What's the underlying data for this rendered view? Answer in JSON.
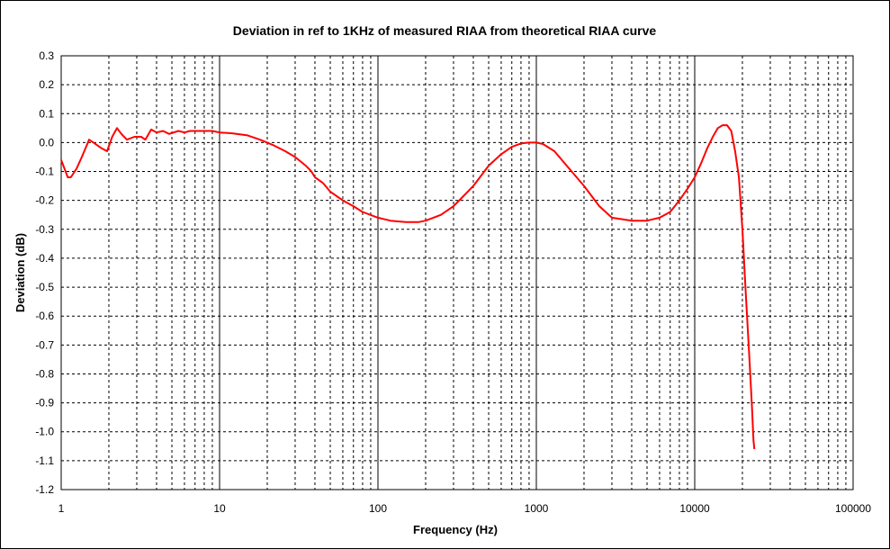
{
  "chart_data": {
    "type": "line",
    "title": "Deviation in ref to 1KHz of measured RIAA from theoretical RIAA curve",
    "xlabel": "Frequency (Hz)",
    "ylabel": "Deviation (dB)",
    "x_scale": "log",
    "xlim": [
      1,
      100000
    ],
    "ylim": [
      -1.2,
      0.3
    ],
    "x_ticks": [
      1,
      10,
      100,
      1000,
      10000,
      100000
    ],
    "x_tick_labels": [
      "1",
      "10",
      "100",
      "1000",
      "10000",
      "100000"
    ],
    "y_ticks": [
      0.3,
      0.2,
      0.1,
      0.0,
      -0.1,
      -0.2,
      -0.3,
      -0.4,
      -0.5,
      -0.6,
      -0.7,
      -0.8,
      -0.9,
      -1.0,
      -1.1,
      -1.2
    ],
    "y_tick_labels": [
      "0.3",
      "0.2",
      "0.1",
      "0.0",
      "-0.1",
      "-0.2",
      "-0.3",
      "-0.4",
      "-0.5",
      "-0.6",
      "-0.7",
      "-0.8",
      "-0.9",
      "-1.0",
      "-1.1",
      "-1.2"
    ],
    "grid": true,
    "colors": {
      "line": "#ff0000",
      "major_grid": "#000000",
      "minor_grid": "#000000",
      "axis": "#000000"
    },
    "series": [
      {
        "x": [
          1,
          1.1,
          1.15,
          1.25,
          1.35,
          1.5,
          1.6,
          1.8,
          1.95,
          2.1,
          2.25,
          2.4,
          2.6,
          2.9,
          3.2,
          3.4,
          3.7,
          4.0,
          4.4,
          4.8,
          5.5,
          6.0,
          6.5,
          7.0,
          8.0,
          9.0,
          10,
          12,
          15,
          18,
          22,
          26,
          30,
          35,
          38,
          40,
          45,
          50,
          60,
          70,
          80,
          100,
          120,
          150,
          180,
          200,
          250,
          300,
          400,
          500,
          600,
          700,
          800,
          900,
          1000,
          1100,
          1300,
          1500,
          2000,
          2500,
          3000,
          4000,
          5000,
          6000,
          7000,
          8000,
          9000,
          10000,
          11000,
          12000,
          13000,
          14000,
          15000,
          16000,
          17000,
          18000,
          19000,
          20000,
          21000,
          22000,
          23000,
          23500,
          23800
        ],
        "y": [
          -0.06,
          -0.12,
          -0.12,
          -0.09,
          -0.05,
          0.01,
          0.0,
          -0.02,
          -0.03,
          0.02,
          0.05,
          0.03,
          0.01,
          0.02,
          0.02,
          0.01,
          0.045,
          0.035,
          0.04,
          0.03,
          0.04,
          0.035,
          0.04,
          0.04,
          0.04,
          0.04,
          0.035,
          0.032,
          0.025,
          0.01,
          -0.01,
          -0.03,
          -0.05,
          -0.08,
          -0.1,
          -0.12,
          -0.14,
          -0.17,
          -0.2,
          -0.22,
          -0.24,
          -0.26,
          -0.27,
          -0.275,
          -0.275,
          -0.27,
          -0.25,
          -0.22,
          -0.15,
          -0.08,
          -0.04,
          -0.015,
          -0.003,
          0.0,
          0.0,
          -0.005,
          -0.03,
          -0.07,
          -0.15,
          -0.22,
          -0.26,
          -0.27,
          -0.27,
          -0.26,
          -0.24,
          -0.2,
          -0.16,
          -0.12,
          -0.07,
          -0.02,
          0.02,
          0.05,
          0.06,
          0.06,
          0.04,
          -0.03,
          -0.12,
          -0.3,
          -0.52,
          -0.72,
          -0.92,
          -1.03,
          -1.06
        ]
      }
    ]
  }
}
